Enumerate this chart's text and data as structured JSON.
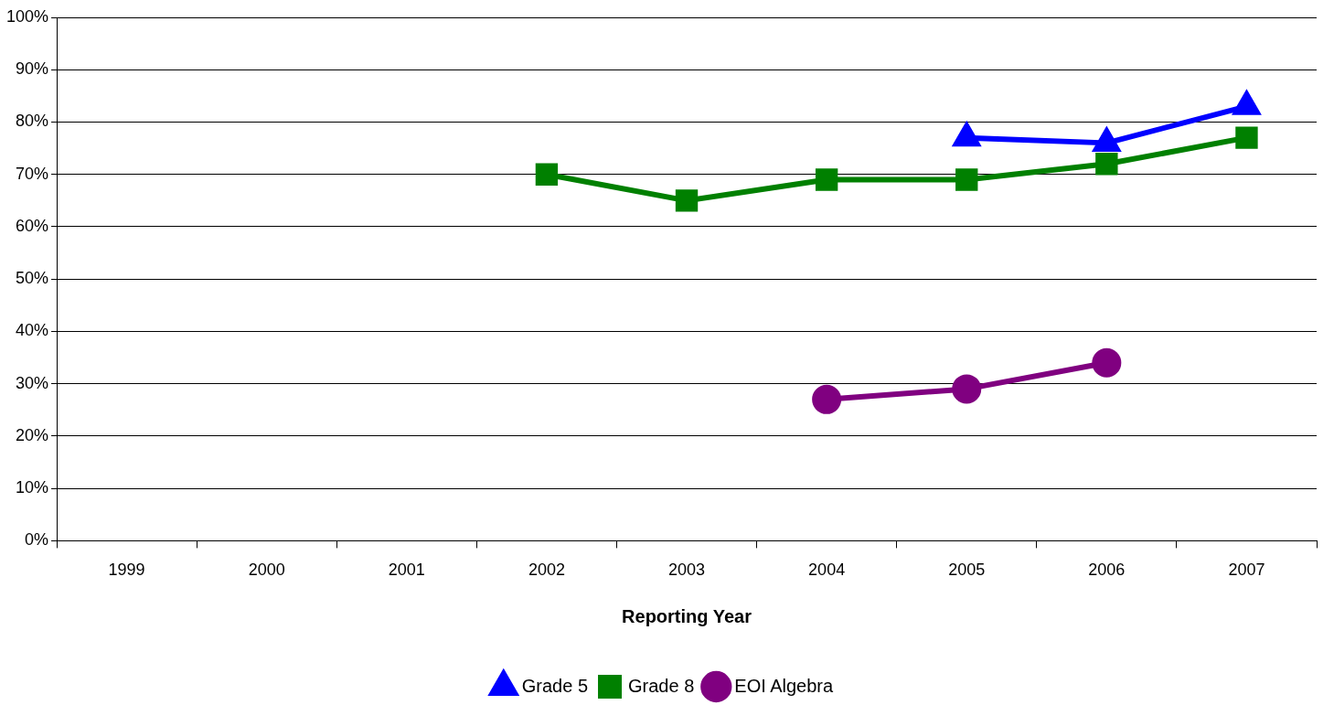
{
  "chart_data": {
    "type": "line",
    "xlabel": "Reporting Year",
    "categories": [
      "1999",
      "2000",
      "2001",
      "2002",
      "2003",
      "2004",
      "2005",
      "2006",
      "2007"
    ],
    "series": [
      {
        "name": "Grade 5",
        "color": "#0000ff",
        "marker": "triangle",
        "values": [
          null,
          null,
          null,
          null,
          null,
          null,
          77,
          76,
          83
        ]
      },
      {
        "name": "Grade 8",
        "color": "#008000",
        "marker": "square",
        "values": [
          null,
          null,
          null,
          70,
          65,
          69,
          69,
          72,
          77
        ]
      },
      {
        "name": "EOI Algebra",
        "color": "#800080",
        "marker": "circle",
        "values": [
          null,
          null,
          null,
          null,
          null,
          27,
          29,
          34,
          null
        ]
      }
    ],
    "ylim": [
      0,
      100
    ],
    "yticks": [
      {
        "value": 0,
        "label": "0%"
      },
      {
        "value": 10,
        "label": "10%"
      },
      {
        "value": 20,
        "label": "20%"
      },
      {
        "value": 30,
        "label": "30%"
      },
      {
        "value": 40,
        "label": "40%"
      },
      {
        "value": 50,
        "label": "50%"
      },
      {
        "value": 60,
        "label": "60%"
      },
      {
        "value": 70,
        "label": "70%"
      },
      {
        "value": 80,
        "label": "80%"
      },
      {
        "value": 90,
        "label": "90%"
      },
      {
        "value": 100,
        "label": "100%"
      }
    ],
    "grid": "y",
    "legend": "bottom",
    "line_style": "solid"
  }
}
